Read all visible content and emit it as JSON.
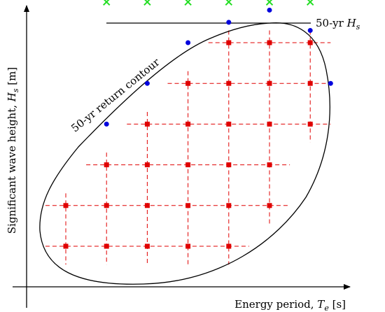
{
  "chart_data": {
    "type": "scatter",
    "xlabel": "Energy period, T_e [s]",
    "ylabel": "Significant wave height, H_s [m]",
    "contour_label": "50-yr return contour",
    "line_label": "50-yr H_s",
    "grid_x": [
      1,
      2,
      3,
      4,
      5,
      6,
      7
    ],
    "grid_y": [
      1,
      2,
      3,
      4,
      5,
      6
    ],
    "grid_points": [
      [
        1,
        1
      ],
      [
        2,
        1
      ],
      [
        3,
        1
      ],
      [
        4,
        1
      ],
      [
        5,
        1
      ],
      [
        1,
        2
      ],
      [
        2,
        2
      ],
      [
        3,
        2
      ],
      [
        4,
        2
      ],
      [
        5,
        2
      ],
      [
        6,
        2
      ],
      [
        2,
        3
      ],
      [
        3,
        3
      ],
      [
        4,
        3
      ],
      [
        5,
        3
      ],
      [
        6,
        3
      ],
      [
        3,
        4
      ],
      [
        4,
        4
      ],
      [
        5,
        4
      ],
      [
        6,
        4
      ],
      [
        7,
        4
      ],
      [
        4,
        5
      ],
      [
        5,
        5
      ],
      [
        6,
        5
      ],
      [
        7,
        5
      ],
      [
        5,
        6
      ],
      [
        6,
        6
      ],
      [
        7,
        6
      ]
    ],
    "contour_points": [
      [
        2,
        4.0
      ],
      [
        3,
        5.0
      ],
      [
        4,
        6.0
      ],
      [
        5,
        6.5
      ],
      [
        6,
        6.8
      ],
      [
        7,
        6.3
      ],
      [
        7.5,
        5.0
      ]
    ],
    "line_crosses": [
      [
        2,
        7.0
      ],
      [
        3,
        7.0
      ],
      [
        4,
        7.0
      ],
      [
        5,
        7.0
      ],
      [
        6,
        7.0
      ],
      [
        7,
        7.0
      ]
    ],
    "colors": {
      "grid": "#e00000",
      "contour_points": "#0000dd",
      "crosses": "#22dd22",
      "contour": "#000000"
    }
  }
}
